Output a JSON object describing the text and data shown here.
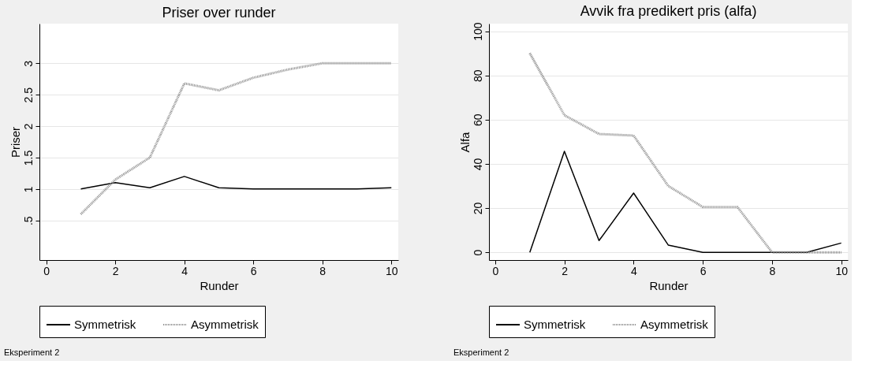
{
  "chart_data": [
    {
      "type": "line",
      "title": "Priser over runder",
      "xlabel": "Runder",
      "ylabel": "Priser",
      "x": [
        1,
        2,
        3,
        4,
        5,
        6,
        7,
        8,
        9,
        10
      ],
      "series": [
        {
          "name": "Symmetrisk",
          "color": "#000000",
          "line_style": "solid",
          "values": [
            1.0,
            1.1,
            1.02,
            1.2,
            1.02,
            1.0,
            1.0,
            1.0,
            1.0,
            1.02
          ]
        },
        {
          "name": "Asymmetrisk",
          "color": "#8c8c8c",
          "line_style": "dotted",
          "values": [
            0.6,
            1.15,
            1.5,
            2.68,
            2.57,
            2.77,
            2.9,
            3.0,
            3.0,
            3.0
          ]
        }
      ],
      "xlim": [
        -0.2,
        10.2
      ],
      "ylim": [
        -0.13,
        3.63
      ],
      "xticks": [
        0,
        2,
        4,
        6,
        8,
        10
      ],
      "yticks": [
        {
          "value": 0.5,
          "label": ".5"
        },
        1,
        1.5,
        2,
        2.5,
        3
      ],
      "grid": "y",
      "legend": "bottom",
      "annotations": [
        "Eksperiment 2"
      ]
    },
    {
      "type": "line",
      "title": "Avvik fra predikert pris (alfa)",
      "xlabel": "Runder",
      "ylabel": "Alfa",
      "x": [
        1,
        2,
        3,
        4,
        5,
        6,
        7,
        8,
        9,
        10
      ],
      "series": [
        {
          "name": "Symmetrisk",
          "color": "#000000",
          "line_style": "solid",
          "values": [
            0,
            45.7,
            5.3,
            26.8,
            3.3,
            0,
            0,
            0,
            0,
            4.2
          ]
        },
        {
          "name": "Asymmetrisk",
          "color": "#8c8c8c",
          "line_style": "dotted",
          "values": [
            90,
            62,
            53.5,
            52.8,
            30,
            20.5,
            20.5,
            0,
            0,
            0
          ]
        }
      ],
      "xlim": [
        -0.18,
        10.19
      ],
      "ylim": [
        -3.5,
        103.4
      ],
      "xticks": [
        0,
        2,
        4,
        6,
        8,
        10
      ],
      "yticks": [
        0,
        20,
        40,
        60,
        80,
        100
      ],
      "grid": "y",
      "legend": "bottom",
      "annotations": [
        "Eksperiment 2"
      ]
    }
  ]
}
